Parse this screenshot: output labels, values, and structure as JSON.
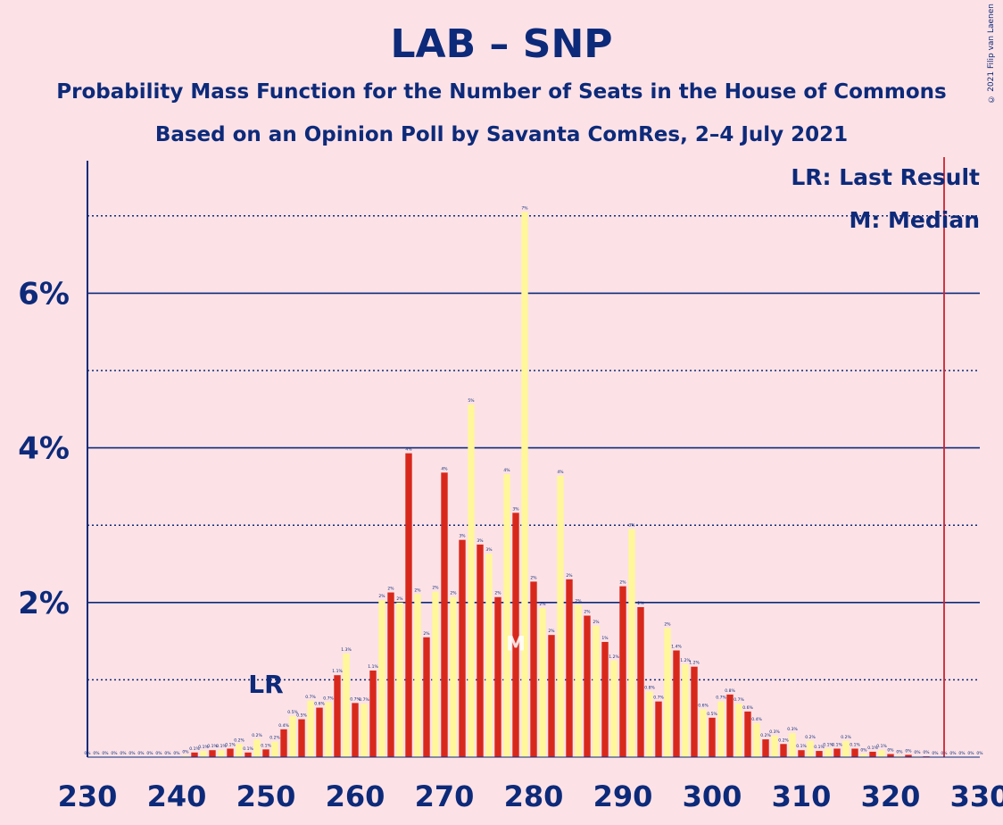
{
  "title": "LAB – SNP",
  "subtitle1": "Probability Mass Function for the Number of Seats in the House of Commons",
  "subtitle2": "Based on an Opinion Poll by Savanta ComRes, 2–4 July 2021",
  "credit": "© 2021 Filip van Laenen",
  "legend": {
    "lr": "LR: Last Result",
    "median": "M: Median"
  },
  "markers": {
    "lr_label": "LR",
    "median_label": "M",
    "last_result_seats": 250,
    "median_seats": 278,
    "majority_line_seats": 326
  },
  "colors": {
    "background": "#FCE2E6",
    "text": "#0D2A7A",
    "bar_red": "#D8281C",
    "bar_yellow": "#FFF79A",
    "majority_line": "#CC2233"
  },
  "chart_data": {
    "type": "bar",
    "xlim": [
      230,
      330
    ],
    "ylim": [
      0,
      7.7
    ],
    "ytick_labels": [
      "2%",
      "4%",
      "6%"
    ],
    "ytick_values": [
      2,
      4,
      6
    ],
    "xtick_labels": [
      "230",
      "240",
      "250",
      "260",
      "270",
      "280",
      "290",
      "300",
      "310",
      "320",
      "330"
    ],
    "xtick_values": [
      230,
      240,
      250,
      260,
      270,
      280,
      290,
      300,
      310,
      320,
      330
    ],
    "grid_major": [
      2,
      4,
      6
    ],
    "grid_minor": [
      1,
      3,
      5,
      7
    ],
    "x": [
      230,
      231,
      232,
      233,
      234,
      235,
      236,
      237,
      238,
      239,
      240,
      241,
      242,
      243,
      244,
      245,
      246,
      247,
      248,
      249,
      250,
      251,
      252,
      253,
      254,
      255,
      256,
      257,
      258,
      259,
      260,
      261,
      262,
      263,
      264,
      265,
      266,
      267,
      268,
      269,
      270,
      271,
      272,
      273,
      274,
      275,
      276,
      277,
      278,
      279,
      280,
      281,
      282,
      283,
      284,
      285,
      286,
      287,
      288,
      289,
      290,
      291,
      292,
      293,
      294,
      295,
      296,
      297,
      298,
      299,
      300,
      301,
      302,
      303,
      304,
      305,
      306,
      307,
      308,
      309,
      310,
      311,
      312,
      313,
      314,
      315,
      316,
      317,
      318,
      319,
      320,
      321,
      322,
      323,
      324,
      325,
      326,
      327,
      328,
      329,
      330
    ],
    "values": [
      0,
      0,
      0,
      0,
      0,
      0,
      0,
      0,
      0,
      0,
      0,
      0.02,
      0.06,
      0.08,
      0.09,
      0.09,
      0.11,
      0.17,
      0.06,
      0.23,
      0.1,
      0.2,
      0.36,
      0.53,
      0.49,
      0.73,
      0.64,
      0.71,
      1.06,
      1.34,
      0.7,
      0.69,
      1.12,
      2.03,
      2.13,
      2.0,
      3.93,
      2.11,
      1.55,
      2.14,
      3.68,
      2.07,
      2.81,
      4.56,
      2.75,
      2.63,
      2.07,
      3.66,
      3.16,
      7.05,
      2.27,
      1.93,
      1.58,
      3.64,
      2.3,
      1.97,
      1.83,
      1.7,
      1.49,
      1.25,
      2.21,
      2.95,
      1.94,
      0.85,
      0.72,
      1.67,
      1.38,
      1.2,
      1.17,
      0.62,
      0.51,
      0.72,
      0.81,
      0.69,
      0.59,
      0.44,
      0.23,
      0.28,
      0.17,
      0.31,
      0.09,
      0.21,
      0.08,
      0.11,
      0.11,
      0.21,
      0.11,
      0.04,
      0.07,
      0.09,
      0.04,
      0.02,
      0.03,
      0.01,
      0.01,
      0,
      0,
      0,
      0,
      0,
      0
    ],
    "data_labels": [
      "0%",
      "0%",
      "0%",
      "0%",
      "0%",
      "0%",
      "0%",
      "0%",
      "0%",
      "0%",
      "0%",
      "0%",
      "0.1%",
      "0.1%",
      "0.1%",
      "0.1%",
      "0.1%",
      "0.2%",
      "0.1%",
      "0.2%",
      "0.1%",
      "0.2%",
      "0.4%",
      "0.5%",
      "0.5%",
      "0.7%",
      "0.6%",
      "0.7%",
      "1.1%",
      "1.3%",
      "0.7%",
      "0.7%",
      "1.1%",
      "2%",
      "2%",
      "2%",
      "4%",
      "2%",
      "2%",
      "2%",
      "4%",
      "2%",
      "3%",
      "5%",
      "3%",
      "3%",
      "2%",
      "4%",
      "3%",
      "7%",
      "2%",
      "2%",
      "2%",
      "4%",
      "2%",
      "2%",
      "2%",
      "2%",
      "1%",
      "1.2%",
      "2%",
      "3%",
      "2%",
      "0.8%",
      "0.7%",
      "2%",
      "1.4%",
      "1.2%",
      "1.2%",
      "0.6%",
      "0.5%",
      "0.7%",
      "0.8%",
      "0.7%",
      "0.6%",
      "0.4%",
      "0.2%",
      "0.3%",
      "0.2%",
      "0.3%",
      "0.1%",
      "0.2%",
      "0.1%",
      "0.1%",
      "0.1%",
      "0.2%",
      "0.1%",
      "0%",
      "0.1%",
      "0.1%",
      "0%",
      "0%",
      "0%",
      "0%",
      "0%",
      "0%",
      "0%",
      "0%",
      "0%",
      "0%",
      "0%"
    ]
  }
}
